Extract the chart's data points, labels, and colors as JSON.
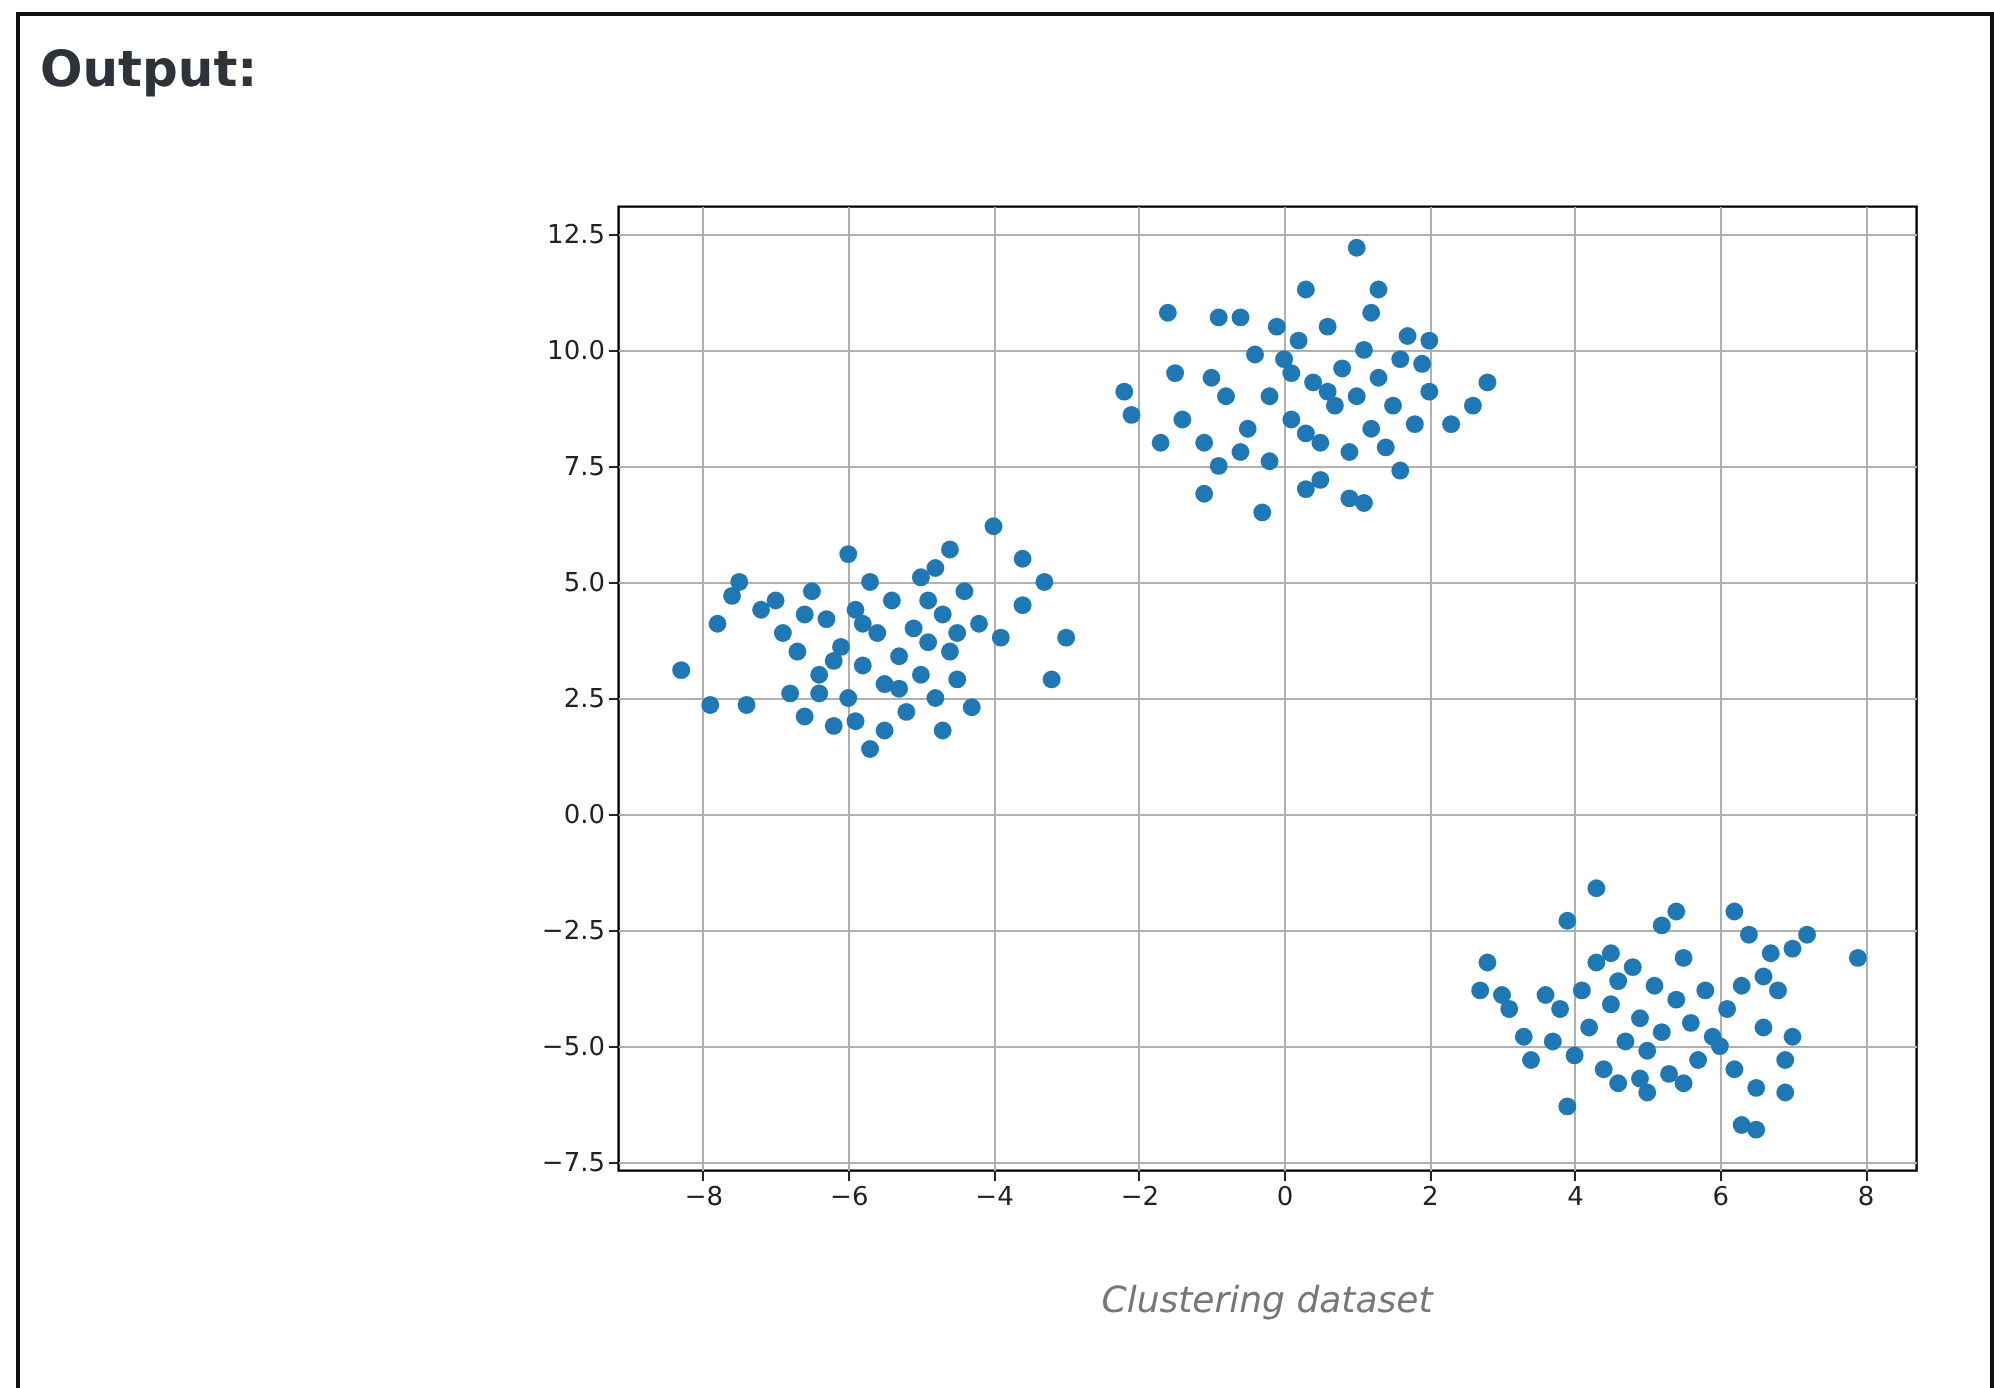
{
  "chart_data": {
    "type": "scatter",
    "title": "Output:",
    "annotations": [
      "Clustering dataset"
    ],
    "x": [
      -8.3,
      -7.9,
      -7.4,
      -7.5,
      -7.6,
      -7.8,
      -7.2,
      -7.0,
      -6.9,
      -6.7,
      -6.8,
      -6.6,
      -6.5,
      -6.4,
      -6.3,
      -6.2,
      -6.1,
      -6.0,
      -6.0,
      -5.9,
      -5.8,
      -5.7,
      -5.7,
      -5.6,
      -5.5,
      -5.5,
      -5.4,
      -5.3,
      -5.2,
      -5.1,
      -5.0,
      -5.0,
      -4.9,
      -4.8,
      -4.8,
      -4.7,
      -4.7,
      -4.6,
      -4.6,
      -4.5,
      -4.4,
      -4.3,
      -4.2,
      -4.0,
      -3.9,
      -3.6,
      -3.6,
      -3.3,
      -3.0,
      -3.2,
      -6.2,
      -5.8,
      -5.3,
      -6.4,
      -4.5,
      -5.9,
      -6.6,
      -4.9,
      1.0,
      0.3,
      -1.6,
      1.3,
      1.2,
      -0.9,
      -0.6,
      -2.2,
      -2.1,
      -1.5,
      -1.0,
      -1.4,
      -1.1,
      -0.9,
      -1.1,
      -0.3,
      0.9,
      1.1,
      1.6,
      2.3,
      2.6,
      2.8,
      1.7,
      2.0,
      0.5,
      0.3,
      -0.5,
      -0.2,
      0.0,
      0.1,
      0.2,
      0.4,
      0.5,
      0.6,
      0.7,
      0.8,
      0.9,
      1.0,
      1.1,
      1.2,
      1.3,
      1.5,
      1.6,
      1.8,
      2.0,
      -0.4,
      -0.6,
      -0.8,
      -1.7,
      -0.2,
      0.3,
      1.4,
      0.1,
      0.6,
      -0.1,
      1.9,
      4.3,
      3.9,
      5.4,
      5.2,
      6.2,
      6.4,
      7.2,
      7.0,
      7.9,
      2.8,
      2.7,
      3.0,
      3.1,
      3.3,
      3.4,
      3.9,
      4.3,
      4.5,
      6.8,
      6.6,
      7.0,
      6.9,
      6.5,
      6.9,
      6.3,
      6.5,
      5.0,
      4.6,
      6.0,
      3.7,
      3.8,
      4.0,
      4.1,
      4.2,
      4.4,
      4.5,
      4.6,
      4.7,
      4.8,
      4.9,
      5.0,
      5.1,
      5.2,
      5.3,
      5.4,
      5.5,
      5.6,
      5.7,
      5.8,
      5.9,
      6.1,
      6.2,
      6.3,
      5.5,
      4.9,
      3.6,
      6.6,
      6.7
    ],
    "values": [
      3.1,
      2.35,
      2.35,
      5.0,
      4.7,
      4.1,
      4.4,
      4.6,
      3.9,
      3.5,
      2.6,
      2.1,
      4.8,
      3.0,
      4.2,
      1.9,
      3.6,
      5.6,
      2.5,
      4.4,
      3.2,
      1.4,
      5.0,
      3.9,
      1.8,
      2.8,
      4.6,
      3.4,
      2.2,
      4.0,
      5.1,
      3.0,
      3.7,
      5.3,
      2.5,
      1.8,
      4.3,
      5.7,
      3.5,
      2.9,
      4.8,
      2.3,
      4.1,
      6.2,
      3.8,
      5.5,
      4.5,
      5.0,
      3.8,
      2.9,
      3.3,
      4.1,
      2.7,
      2.6,
      3.9,
      2.0,
      4.3,
      4.6,
      12.2,
      11.3,
      10.8,
      11.3,
      10.8,
      10.7,
      10.7,
      9.1,
      8.6,
      9.5,
      9.4,
      8.5,
      8.0,
      7.5,
      6.9,
      6.5,
      6.8,
      6.7,
      7.4,
      8.4,
      8.8,
      9.3,
      10.3,
      10.2,
      7.2,
      7.0,
      8.3,
      9.0,
      9.8,
      8.5,
      10.2,
      9.3,
      8.0,
      10.5,
      8.8,
      9.6,
      7.8,
      9.0,
      10.0,
      8.3,
      9.4,
      8.8,
      9.8,
      8.4,
      9.1,
      9.9,
      7.8,
      9.0,
      8.0,
      7.6,
      8.2,
      7.9,
      9.5,
      9.1,
      10.5,
      9.7,
      -1.6,
      -2.3,
      -2.1,
      -2.4,
      -2.1,
      -2.6,
      -2.6,
      -2.9,
      -3.1,
      -3.2,
      -3.8,
      -3.9,
      -4.2,
      -4.8,
      -5.3,
      -6.3,
      -3.2,
      -3.0,
      -3.8,
      -3.5,
      -4.8,
      -5.3,
      -5.9,
      -6.0,
      -6.7,
      -6.8,
      -6.0,
      -5.8,
      -5.0,
      -4.9,
      -4.2,
      -5.2,
      -3.8,
      -4.6,
      -5.5,
      -4.1,
      -3.6,
      -4.9,
      -3.3,
      -4.4,
      -5.1,
      -3.7,
      -4.7,
      -5.6,
      -4.0,
      -3.1,
      -4.5,
      -5.3,
      -3.8,
      -4.8,
      -4.2,
      -5.5,
      -3.7,
      -5.8,
      -5.7,
      -3.9,
      -4.6,
      -3.0
    ],
    "color": "#1f77b4",
    "marker": "circle",
    "grid": true,
    "xlim": [
      -9.17,
      8.7
    ],
    "ylim": [
      -7.67,
      13.1
    ],
    "xticks": [
      -8,
      -6,
      -4,
      -2,
      0,
      2,
      4,
      6,
      8
    ],
    "yticks": [
      {
        "value": -7.5,
        "label": "−7.5"
      },
      {
        "value": -5,
        "label": "−5.0"
      },
      {
        "value": -2.5,
        "label": "−2.5"
      },
      {
        "value": 0,
        "label": "0.0"
      },
      {
        "value": 2.5,
        "label": "2.5"
      },
      {
        "value": 5,
        "label": "5.0"
      },
      {
        "value": 7.5,
        "label": "7.5"
      },
      {
        "value": 10,
        "label": "10.0"
      },
      {
        "value": 12.5,
        "label": "12.5"
      }
    ]
  }
}
